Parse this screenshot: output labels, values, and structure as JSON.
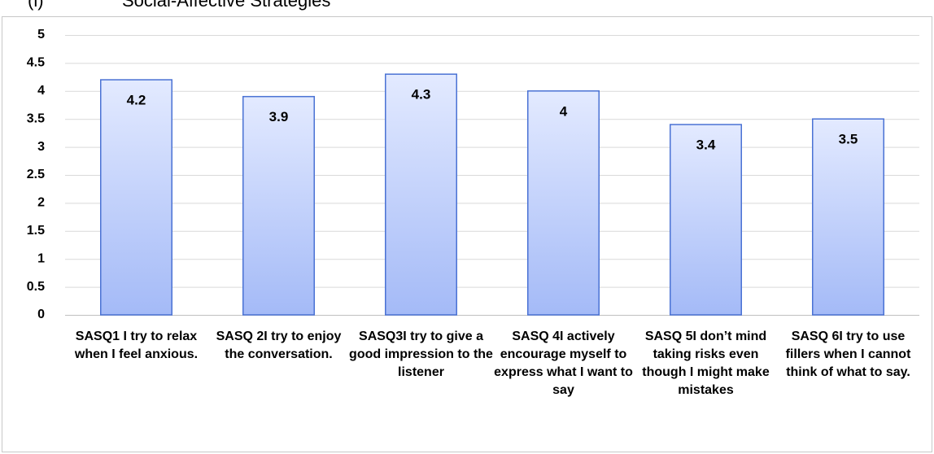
{
  "section_label": "(i)",
  "chart_data": {
    "type": "bar",
    "title": "Social-Affective Strategies",
    "categories": [
      "SASQ1 I try to relax when I feel anxious.",
      "SASQ 2I try to enjoy the conversation.",
      "SASQ3I try to give a good impression to the listener",
      "SASQ 4I actively encourage myself to express what I want to say",
      "SASQ 5I don’t mind taking risks even though I might make mistakes",
      "SASQ 6I try to use fillers when I cannot think of what to say."
    ],
    "values": [
      4.2,
      3.9,
      4.3,
      4,
      3.4,
      3.5
    ],
    "color": "#a4baf7",
    "ylim": [
      0,
      5
    ],
    "yticks": [
      0,
      0.5,
      1,
      1.5,
      2,
      2.5,
      3,
      3.5,
      4,
      4.5,
      5
    ],
    "grid": true
  }
}
